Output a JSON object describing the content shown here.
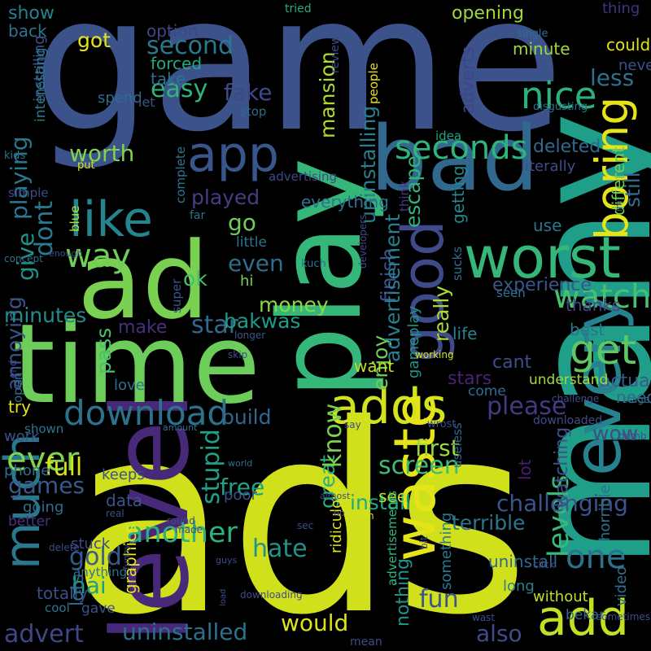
{
  "words": [
    {
      "text": "game",
      "color": "#3b528b"
    },
    {
      "text": "ads",
      "color": "#d0e11c"
    },
    {
      "text": "many",
      "color": "#1f9e89"
    },
    {
      "text": "level",
      "color": "#482878"
    },
    {
      "text": "time",
      "color": "#6ccd5a"
    },
    {
      "text": "ad",
      "color": "#7ad151"
    },
    {
      "text": "play",
      "color": "#35b779"
    },
    {
      "text": "bad",
      "color": "#31688e"
    },
    {
      "text": "worst",
      "color": "#35b779"
    },
    {
      "text": "good",
      "color": "#3e4a89"
    },
    {
      "text": "every",
      "color": "#26828e"
    },
    {
      "text": "app",
      "color": "#39568c"
    },
    {
      "text": "like",
      "color": "#25858e"
    },
    {
      "text": "adds",
      "color": "#d2e21b"
    },
    {
      "text": "add",
      "color": "#c2df23"
    },
    {
      "text": "waste",
      "color": "#e5e419"
    },
    {
      "text": "much",
      "color": "#2a788e"
    },
    {
      "text": "download",
      "color": "#2c728e"
    },
    {
      "text": "seconds",
      "color": "#2fb47c"
    },
    {
      "text": "get",
      "color": "#5ec962"
    },
    {
      "text": "boring",
      "color": "#e5e419"
    },
    {
      "text": "nice",
      "color": "#2db27d"
    },
    {
      "text": "watch",
      "color": "#48c16e"
    },
    {
      "text": "way",
      "color": "#6ece58"
    },
    {
      "text": "ever",
      "color": "#7fd34e"
    },
    {
      "text": "one",
      "color": "#2c728e"
    },
    {
      "text": "levels",
      "color": "#38b977"
    },
    {
      "text": "uninstalled",
      "color": "#2d708e"
    },
    {
      "text": "fun",
      "color": "#3a548c"
    },
    {
      "text": "hate",
      "color": "#21918c"
    },
    {
      "text": "another",
      "color": "#2db27d"
    },
    {
      "text": "please",
      "color": "#443983"
    },
    {
      "text": "screen",
      "color": "#3dbc74"
    },
    {
      "text": "free",
      "color": "#1fa187"
    },
    {
      "text": "gold",
      "color": "#365c8d"
    },
    {
      "text": "hai",
      "color": "#1e9c89"
    },
    {
      "text": "advert",
      "color": "#3f4788"
    },
    {
      "text": "would",
      "color": "#dde318"
    },
    {
      "text": "also",
      "color": "#3e4c8a"
    },
    {
      "text": "games",
      "color": "#38598c"
    },
    {
      "text": "full",
      "color": "#d8e219"
    },
    {
      "text": "first",
      "color": "#9bd93c"
    },
    {
      "text": "stupid",
      "color": "#1fa088"
    },
    {
      "text": "worth",
      "color": "#7fd34e"
    },
    {
      "text": "second",
      "color": "#2a788e"
    },
    {
      "text": "easy",
      "color": "#2fb47c"
    },
    {
      "text": "fake",
      "color": "#3e4989"
    },
    {
      "text": "played",
      "color": "#433e85"
    },
    {
      "text": "go",
      "color": "#6ece58"
    },
    {
      "text": "even",
      "color": "#2f6c8e"
    },
    {
      "text": "ok",
      "color": "#45bf70"
    },
    {
      "text": "star",
      "color": "#30698e"
    },
    {
      "text": "make",
      "color": "#472f7d"
    },
    {
      "text": "money",
      "color": "#8bd646"
    },
    {
      "text": "bakwas",
      "color": "#1e9b8a"
    },
    {
      "text": "dont",
      "color": "#287c8e"
    },
    {
      "text": "give",
      "color": "#20928c"
    },
    {
      "text": "annoying",
      "color": "#3b528b"
    },
    {
      "text": "playing",
      "color": "#2a778e"
    },
    {
      "text": "minutes",
      "color": "#228c8d"
    },
    {
      "text": "show",
      "color": "#27808e"
    },
    {
      "text": "got",
      "color": "#e5e419"
    },
    {
      "text": "back",
      "color": "#2b758e"
    },
    {
      "text": "option",
      "color": "#3f4788"
    },
    {
      "text": "forced",
      "color": "#22a785"
    },
    {
      "text": "take",
      "color": "#2c738e"
    },
    {
      "text": "mansion",
      "color": "#addc30"
    },
    {
      "text": "escape",
      "color": "#2fb47c"
    },
    {
      "text": "uninstalling",
      "color": "#287d8e"
    },
    {
      "text": "adverts",
      "color": "#414487"
    },
    {
      "text": "installing",
      "color": "#3a548c"
    },
    {
      "text": "interesting",
      "color": "#2a778e"
    },
    {
      "text": "spend",
      "color": "#2f6b8e"
    },
    {
      "text": "let",
      "color": "#3b528b"
    },
    {
      "text": "stop",
      "color": "#31688e"
    },
    {
      "text": "tried",
      "color": "#25ac82"
    },
    {
      "text": "opening",
      "color": "#9dd93b"
    },
    {
      "text": "thing",
      "color": "#46327e"
    },
    {
      "text": "less",
      "color": "#2d718e"
    },
    {
      "text": "could",
      "color": "#dde318"
    },
    {
      "text": "never",
      "color": "#3a538b"
    },
    {
      "text": "single",
      "color": "#2e6d8e"
    },
    {
      "text": "review",
      "color": "#3e4a89"
    },
    {
      "text": "minute",
      "color": "#9dd93b"
    },
    {
      "text": "people",
      "color": "#e2e418"
    },
    {
      "text": "disgusting",
      "color": "#2c728e"
    },
    {
      "text": "idea",
      "color": "#1fa188"
    },
    {
      "text": "deleted",
      "color": "#31688e"
    },
    {
      "text": "still",
      "color": "#2e6f8e"
    },
    {
      "text": "different",
      "color": "#6ece58"
    },
    {
      "text": "literally",
      "color": "#3e4c8a"
    },
    {
      "text": "use",
      "color": "#2b748e"
    },
    {
      "text": "getting",
      "color": "#23898e"
    },
    {
      "text": "think",
      "color": "#453781"
    },
    {
      "text": "finish",
      "color": "#3d4d8a"
    },
    {
      "text": "enjoy",
      "color": "#6ece58"
    },
    {
      "text": "advertisement",
      "color": "#287d8e"
    },
    {
      "text": "really",
      "color": "#addc30"
    },
    {
      "text": "gameplay",
      "color": "#1f958b"
    },
    {
      "text": "experience",
      "color": "#39568c"
    },
    {
      "text": "seen",
      "color": "#2b758e"
    },
    {
      "text": "thanks",
      "color": "#414487"
    },
    {
      "text": "sucks",
      "color": "#2d708e"
    },
    {
      "text": "life",
      "color": "#25848e"
    },
    {
      "text": "best",
      "color": "#2c738e"
    },
    {
      "text": "actually",
      "color": "#375b8d"
    },
    {
      "text": "need",
      "color": "#2e6d8e"
    },
    {
      "text": "wow",
      "color": "#3e4c8a"
    },
    {
      "text": "want",
      "color": "#c0df25"
    },
    {
      "text": "cant",
      "color": "#3d4e8a"
    },
    {
      "text": "stars",
      "color": "#482475"
    },
    {
      "text": "understand",
      "color": "#a2da37"
    },
    {
      "text": "come",
      "color": "#2e6e8e"
    },
    {
      "text": "pass",
      "color": "#48c16e"
    },
    {
      "text": "build",
      "color": "#31678e"
    },
    {
      "text": "love",
      "color": "#2d708e"
    },
    {
      "text": "try",
      "color": "#dfe318"
    },
    {
      "text": "open",
      "color": "#2f6b8e"
    },
    {
      "text": "shown",
      "color": "#2b758e"
    },
    {
      "text": "work",
      "color": "#3a538b"
    },
    {
      "text": "phone",
      "color": "#2e6e8e"
    },
    {
      "text": "keeps",
      "color": "#3d4e8a"
    },
    {
      "text": "going",
      "color": "#2d708e"
    },
    {
      "text": "better",
      "color": "#46337f"
    },
    {
      "text": "data",
      "color": "#3b528b"
    },
    {
      "text": "poor",
      "color": "#3c508b"
    },
    {
      "text": "great",
      "color": "#29af7f"
    },
    {
      "text": "know",
      "color": "#7ad151"
    },
    {
      "text": "install",
      "color": "#22a785"
    },
    {
      "text": "see",
      "color": "#c2df23"
    },
    {
      "text": "useless",
      "color": "#31688e"
    },
    {
      "text": "challenging",
      "color": "#3a548c"
    },
    {
      "text": "lot",
      "color": "#481f70"
    },
    {
      "text": "watching",
      "color": "#3b528b"
    },
    {
      "text": "horrible",
      "color": "#2c728e"
    },
    {
      "text": "nothing",
      "color": "#21918c"
    },
    {
      "text": "terrible",
      "color": "#2b758e"
    },
    {
      "text": "uninstall",
      "color": "#31688e"
    },
    {
      "text": "long",
      "color": "#26828e"
    },
    {
      "text": "without",
      "color": "#bddf26"
    },
    {
      "text": "video",
      "color": "#2e6e8e"
    },
    {
      "text": "bekar",
      "color": "#31688e"
    },
    {
      "text": "something",
      "color": "#2a778e"
    },
    {
      "text": "advertisements",
      "color": "#32b67a"
    },
    {
      "text": "ridiculous",
      "color": "#dde318"
    },
    {
      "text": "graphics",
      "color": "#e7e419"
    },
    {
      "text": "anything",
      "color": "#2c728e"
    },
    {
      "text": "totally",
      "color": "#3e4c8a"
    },
    {
      "text": "gave",
      "color": "#3b528b"
    },
    {
      "text": "cool",
      "color": "#2b748e"
    },
    {
      "text": "lots",
      "color": "#2e6e8e"
    },
    {
      "text": "stuck",
      "color": "#3f4788"
    },
    {
      "text": "little",
      "color": "#2b758e"
    },
    {
      "text": "hi",
      "color": "#7ad151"
    },
    {
      "text": "super",
      "color": "#3a548c"
    },
    {
      "text": "complete",
      "color": "#2c738e"
    },
    {
      "text": "everything",
      "color": "#2c738e"
    },
    {
      "text": "advertising",
      "color": "#3e4989"
    },
    {
      "text": "blue",
      "color": "#bddf26"
    },
    {
      "text": "far",
      "color": "#2d708e"
    },
    {
      "text": "simple",
      "color": "#3e4c8a"
    },
    {
      "text": "put",
      "color": "#dde318"
    },
    {
      "text": "kids",
      "color": "#2d708e"
    },
    {
      "text": "concept",
      "color": "#2d708e"
    },
    {
      "text": "enough",
      "color": "#3e4c8a"
    },
    {
      "text": "end",
      "color": "#3e4c8a"
    },
    {
      "text": "kuch",
      "color": "#2e6e8e"
    },
    {
      "text": "developers",
      "color": "#3e4c8a"
    },
    {
      "text": "longer",
      "color": "#3a548c"
    },
    {
      "text": "skip",
      "color": "#3e4c8a"
    },
    {
      "text": "working",
      "color": "#d2e21b"
    },
    {
      "text": "challenge",
      "color": "#3e4c8a"
    },
    {
      "text": "stage",
      "color": "#2e6e8e"
    },
    {
      "text": "dumb",
      "color": "#3e4c8a"
    },
    {
      "text": "say",
      "color": "#3e4c8a"
    },
    {
      "text": "wrost",
      "color": "#3e4c8a"
    },
    {
      "text": "downloaded",
      "color": "#3e4c8a"
    },
    {
      "text": "amount",
      "color": "#2d708e"
    },
    {
      "text": "world",
      "color": "#2d708e"
    },
    {
      "text": "almost",
      "color": "#3e4c8a"
    },
    {
      "text": "real",
      "color": "#3e4c8a"
    },
    {
      "text": "ho",
      "color": "#3e4c8a"
    },
    {
      "text": "min",
      "color": "#d8e219"
    },
    {
      "text": "bit",
      "color": "#3e4c8a"
    },
    {
      "text": "round",
      "color": "#3e4c8a"
    },
    {
      "text": "made",
      "color": "#3e4c8a"
    },
    {
      "text": "delete",
      "color": "#3e4c8a"
    },
    {
      "text": "guys",
      "color": "#3e4c8a"
    },
    {
      "text": "funny",
      "color": "#3e4c8a"
    },
    {
      "text": "load",
      "color": "#3e4c8a"
    },
    {
      "text": "downloading",
      "color": "#3e4c8a"
    },
    {
      "text": "mean",
      "color": "#3e4c8a"
    },
    {
      "text": "wast",
      "color": "#3e4c8a"
    },
    {
      "text": "click",
      "color": "#3e4c8a"
    },
    {
      "text": "sometimes",
      "color": "#3e4c8a"
    },
    {
      "text": "im",
      "color": "#3e4c8a"
    },
    {
      "text": "sec",
      "color": "#3e4c8a"
    },
    {
      "text": "next",
      "color": "#3e4c8a"
    },
    {
      "text": "pay",
      "color": "#3e4c8a"
    }
  ]
}
